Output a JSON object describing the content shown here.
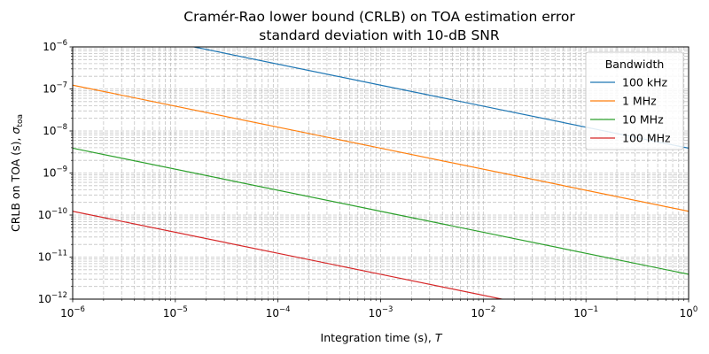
{
  "chart_data": {
    "type": "line",
    "title_line1": "Cramér-Rao lower bound (CRLB) on TOA estimation error",
    "title_line2": "standard deviation with 10-dB SNR",
    "xlabel": "Integration time (s), ",
    "xlabel_symbol": "T",
    "ylabel": "CRLB on TOA (s), ",
    "ylabel_symbol": "σ",
    "ylabel_subscript": "toa",
    "xscale": "log",
    "yscale": "log",
    "xlim": [
      1e-06,
      1
    ],
    "ylim": [
      1e-12,
      1e-06
    ],
    "grid": "both (major and minor, dashed)",
    "legend_title": "Bandwidth",
    "legend_position": "top-right",
    "x_ticks": [
      {
        "value": 1e-06,
        "mantissa": "10",
        "exponent": "−6"
      },
      {
        "value": 1e-05,
        "mantissa": "10",
        "exponent": "−5"
      },
      {
        "value": 0.0001,
        "mantissa": "10",
        "exponent": "−4"
      },
      {
        "value": 0.001,
        "mantissa": "10",
        "exponent": "−3"
      },
      {
        "value": 0.01,
        "mantissa": "10",
        "exponent": "−2"
      },
      {
        "value": 0.1,
        "mantissa": "10",
        "exponent": "−1"
      },
      {
        "value": 1,
        "mantissa": "10",
        "exponent": "0"
      }
    ],
    "y_ticks": [
      {
        "value": 1e-12,
        "mantissa": "10",
        "exponent": "−12"
      },
      {
        "value": 1e-11,
        "mantissa": "10",
        "exponent": "−11"
      },
      {
        "value": 1e-10,
        "mantissa": "10",
        "exponent": "−10"
      },
      {
        "value": 1e-09,
        "mantissa": "10",
        "exponent": "−9"
      },
      {
        "value": 1e-08,
        "mantissa": "10",
        "exponent": "−8"
      },
      {
        "value": 1e-07,
        "mantissa": "10",
        "exponent": "−7"
      },
      {
        "value": 1e-06,
        "mantissa": "10",
        "exponent": "−6"
      }
    ],
    "series": [
      {
        "name": "100 kHz",
        "color": "#1f77b4",
        "x": [
          1e-06,
          0.001,
          1
        ],
        "y": [
          3.9e-06,
          1.23e-07,
          3.9e-09
        ]
      },
      {
        "name": "1 MHz",
        "color": "#ff7f0e",
        "x": [
          1e-06,
          0.001,
          1
        ],
        "y": [
          1.23e-07,
          3.9e-09,
          1.23e-10
        ]
      },
      {
        "name": "10 MHz",
        "color": "#2ca02c",
        "x": [
          1e-06,
          0.001,
          1
        ],
        "y": [
          3.9e-09,
          1.23e-10,
          3.9e-12
        ]
      },
      {
        "name": "100 MHz",
        "color": "#d62728",
        "x": [
          1e-06,
          0.001,
          1
        ],
        "y": [
          1.23e-10,
          3.9e-12,
          1.23e-13
        ]
      }
    ]
  }
}
